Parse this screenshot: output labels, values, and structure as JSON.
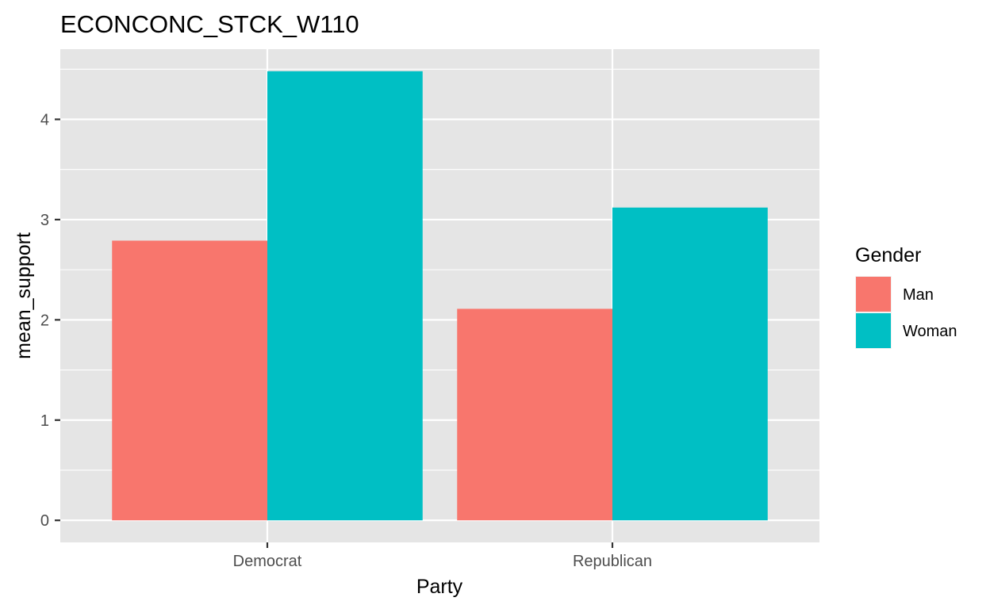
{
  "chart_data": {
    "type": "bar",
    "title": "ECONCONC_STCK_W110",
    "xlabel": "Party",
    "ylabel": "mean_support",
    "categories": [
      "Democrat",
      "Republican"
    ],
    "series": [
      {
        "name": "Man",
        "values": [
          2.79,
          2.11
        ],
        "color": "#F8766D"
      },
      {
        "name": "Woman",
        "values": [
          4.48,
          3.12
        ],
        "color": "#00BFC4"
      }
    ],
    "ylim": [
      -0.22,
      4.7
    ],
    "yticks": [
      0,
      1,
      2,
      3,
      4
    ],
    "ytick_labels": [
      "0",
      "1",
      "2",
      "3",
      "4"
    ],
    "grid": true,
    "legend": {
      "title": "Gender",
      "position": "right",
      "entries": [
        "Man",
        "Woman"
      ]
    },
    "panel_color": "#E5E5E5",
    "grid_color": "#FFFFFF"
  }
}
